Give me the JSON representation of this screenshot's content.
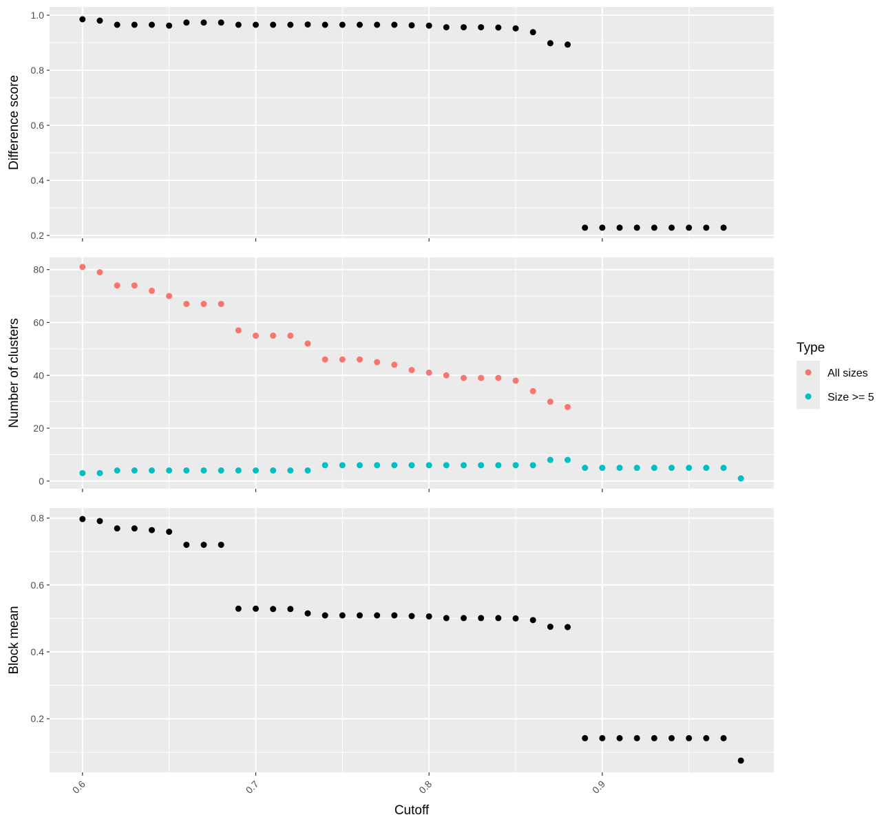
{
  "chart_data": {
    "type": "scatter",
    "xlabel": "Cutoff",
    "xlim": [
      0.581,
      0.999
    ],
    "x_ticks": [
      0.6,
      0.7,
      0.8,
      0.9
    ],
    "x_tick_labels": [
      "0.6",
      "0.7",
      "0.8",
      "0.9"
    ],
    "grid": true,
    "legend": {
      "title": "Type",
      "placement": "right",
      "entries": [
        {
          "label": "All sizes",
          "color": "#F8766D"
        },
        {
          "label": "Size >= 5",
          "color": "#00BFC4"
        }
      ]
    },
    "panels": [
      {
        "ylabel": "Difference score",
        "ylim": [
          0.19,
          1.03
        ],
        "y_ticks": [
          0.2,
          0.4,
          0.6,
          0.8,
          1.0
        ],
        "y_tick_labels": [
          "0.2",
          "0.4",
          "0.6",
          "0.8",
          "1.0"
        ],
        "series": [
          {
            "color": "#000000",
            "x": [
              0.6,
              0.61,
              0.62,
              0.63,
              0.64,
              0.65,
              0.66,
              0.67,
              0.68,
              0.69,
              0.7,
              0.71,
              0.72,
              0.73,
              0.74,
              0.75,
              0.76,
              0.77,
              0.78,
              0.79,
              0.8,
              0.81,
              0.82,
              0.83,
              0.84,
              0.85,
              0.86,
              0.87,
              0.88,
              0.89,
              0.9,
              0.91,
              0.92,
              0.93,
              0.94,
              0.95,
              0.96,
              0.97
            ],
            "y": [
              0.985,
              0.98,
              0.965,
              0.965,
              0.965,
              0.962,
              0.973,
              0.973,
              0.973,
              0.965,
              0.965,
              0.965,
              0.965,
              0.966,
              0.965,
              0.965,
              0.965,
              0.965,
              0.965,
              0.963,
              0.962,
              0.956,
              0.956,
              0.956,
              0.955,
              0.952,
              0.938,
              0.898,
              0.893,
              0.228,
              0.228,
              0.228,
              0.228,
              0.228,
              0.228,
              0.228,
              0.228,
              0.228
            ]
          }
        ]
      },
      {
        "ylabel": "Number of clusters",
        "ylim": [
          -2.9,
          84.6
        ],
        "y_ticks": [
          0,
          20,
          40,
          60,
          80
        ],
        "y_tick_labels": [
          "0",
          "20",
          "40",
          "60",
          "80"
        ],
        "series": [
          {
            "name": "All sizes",
            "color": "#F8766D",
            "x": [
              0.6,
              0.61,
              0.62,
              0.63,
              0.64,
              0.65,
              0.66,
              0.67,
              0.68,
              0.69,
              0.7,
              0.71,
              0.72,
              0.73,
              0.74,
              0.75,
              0.76,
              0.77,
              0.78,
              0.79,
              0.8,
              0.81,
              0.82,
              0.83,
              0.84,
              0.85,
              0.86,
              0.87,
              0.88
            ],
            "y": [
              81,
              79,
              74,
              74,
              72,
              70,
              67,
              67,
              67,
              57,
              55,
              55,
              55,
              52,
              46,
              46,
              46,
              45,
              44,
              42,
              41,
              40,
              39,
              39,
              39,
              38,
              34,
              30,
              28
            ]
          },
          {
            "name": "Size >= 5",
            "color": "#00BFC4",
            "x": [
              0.6,
              0.61,
              0.62,
              0.63,
              0.64,
              0.65,
              0.66,
              0.67,
              0.68,
              0.69,
              0.7,
              0.71,
              0.72,
              0.73,
              0.74,
              0.75,
              0.76,
              0.77,
              0.78,
              0.79,
              0.8,
              0.81,
              0.82,
              0.83,
              0.84,
              0.85,
              0.86,
              0.87,
              0.88,
              0.89,
              0.9,
              0.91,
              0.92,
              0.93,
              0.94,
              0.95,
              0.96,
              0.97,
              0.98
            ],
            "y": [
              3,
              3,
              4,
              4,
              4,
              4,
              4,
              4,
              4,
              4,
              4,
              4,
              4,
              4,
              6,
              6,
              6,
              6,
              6,
              6,
              6,
              6,
              6,
              6,
              6,
              6,
              6,
              8,
              8,
              5,
              5,
              5,
              5,
              5,
              5,
              5,
              5,
              5,
              1
            ]
          }
        ]
      },
      {
        "ylabel": "Block mean",
        "ylim": [
          0.04,
          0.83
        ],
        "y_ticks": [
          0.2,
          0.4,
          0.6,
          0.8
        ],
        "y_tick_labels": [
          "0.2",
          "0.4",
          "0.6",
          "0.8"
        ],
        "series": [
          {
            "color": "#000000",
            "x": [
              0.6,
              0.61,
              0.62,
              0.63,
              0.64,
              0.65,
              0.66,
              0.67,
              0.68,
              0.69,
              0.7,
              0.71,
              0.72,
              0.73,
              0.74,
              0.75,
              0.76,
              0.77,
              0.78,
              0.79,
              0.8,
              0.81,
              0.82,
              0.83,
              0.84,
              0.85,
              0.86,
              0.87,
              0.88,
              0.89,
              0.9,
              0.91,
              0.92,
              0.93,
              0.94,
              0.95,
              0.96,
              0.97,
              0.98
            ],
            "y": [
              0.797,
              0.791,
              0.769,
              0.769,
              0.764,
              0.759,
              0.72,
              0.72,
              0.72,
              0.529,
              0.529,
              0.528,
              0.528,
              0.515,
              0.509,
              0.509,
              0.509,
              0.509,
              0.509,
              0.507,
              0.506,
              0.501,
              0.501,
              0.501,
              0.501,
              0.5,
              0.495,
              0.475,
              0.474,
              0.142,
              0.142,
              0.142,
              0.142,
              0.142,
              0.142,
              0.142,
              0.142,
              0.142,
              0.075
            ]
          }
        ]
      }
    ]
  }
}
